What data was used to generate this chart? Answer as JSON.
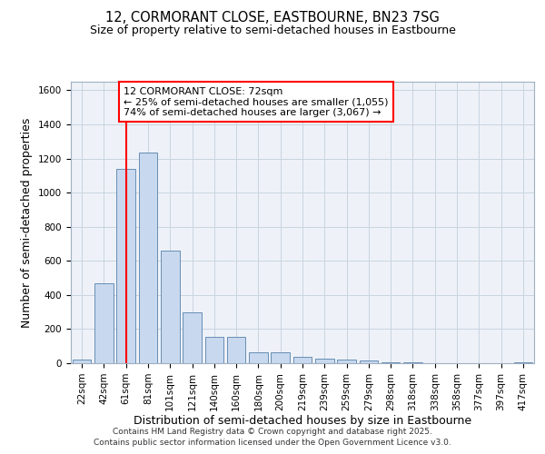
{
  "title_line1": "12, CORMORANT CLOSE, EASTBOURNE, BN23 7SG",
  "title_line2": "Size of property relative to semi-detached houses in Eastbourne",
  "xlabel": "Distribution of semi-detached houses by size in Eastbourne",
  "ylabel": "Number of semi-detached properties",
  "categories": [
    "22sqm",
    "42sqm",
    "61sqm",
    "81sqm",
    "101sqm",
    "121sqm",
    "140sqm",
    "160sqm",
    "180sqm",
    "200sqm",
    "219sqm",
    "239sqm",
    "259sqm",
    "279sqm",
    "298sqm",
    "318sqm",
    "338sqm",
    "358sqm",
    "377sqm",
    "397sqm",
    "417sqm"
  ],
  "values": [
    22,
    470,
    1140,
    1235,
    660,
    300,
    155,
    155,
    65,
    65,
    38,
    28,
    20,
    14,
    7,
    3,
    2,
    1,
    1,
    0,
    7
  ],
  "bar_color": "#c8d8ee",
  "bar_edge_color": "#5580aa",
  "grid_color": "#c8d4e0",
  "bg_color": "#eef2f8",
  "red_line_x": 2.0,
  "annotation_title": "12 CORMORANT CLOSE: 72sqm",
  "annotation_line2": "← 25% of semi-detached houses are smaller (1,055)",
  "annotation_line3": "74% of semi-detached houses are larger (3,067) →",
  "ylim_max": 1650,
  "yticks": [
    0,
    200,
    400,
    600,
    800,
    1000,
    1200,
    1400,
    1600
  ],
  "footer_line1": "Contains HM Land Registry data © Crown copyright and database right 2025.",
  "footer_line2": "Contains public sector information licensed under the Open Government Licence v3.0.",
  "title_fontsize": 10.5,
  "subtitle_fontsize": 9,
  "axis_label_fontsize": 9,
  "tick_fontsize": 7.5,
  "annotation_fontsize": 8,
  "footer_fontsize": 6.5
}
